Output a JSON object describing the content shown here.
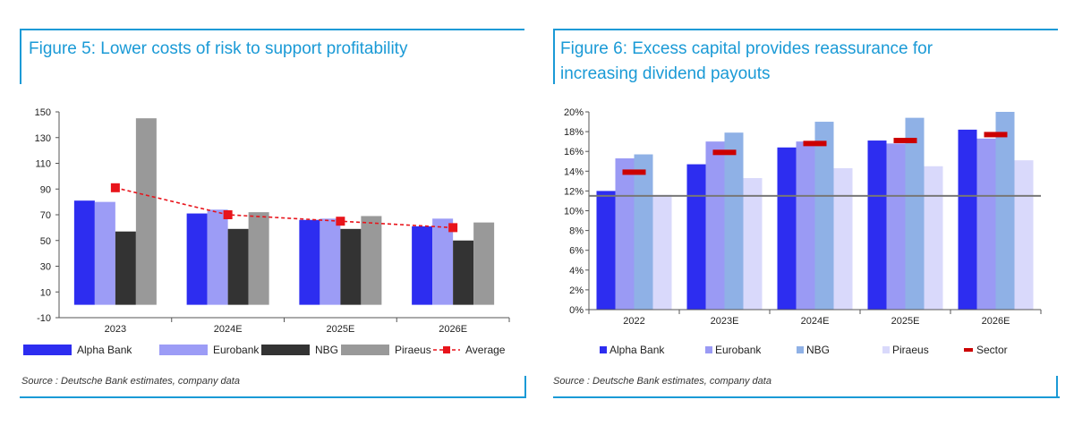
{
  "figure5": {
    "title": "Figure 5: Lower costs of risk to support profitability",
    "source": "Source : Deutsche Bank estimates, company data",
    "colors": {
      "Alpha Bank": "#2d2df0",
      "Eurobank": "#9c9cf6",
      "NBG": "#333333",
      "Piraeus": "#999999",
      "Average": "#e8141b",
      "axis": "#555555"
    }
  },
  "figure6": {
    "title_line1": "Figure 6: Excess capital provides reassurance for",
    "title_line2": "increasing dividend payouts",
    "source": "Source : Deutsche Bank estimates, company data",
    "colors": {
      "Alpha Bank": "#2d2df0",
      "Eurobank": "#9a9af4",
      "NBG": "#8fb1e6",
      "Piraeus": "#d9d9fb",
      "Sector": "#cc0000",
      "reference_line": "#777777"
    }
  },
  "chart_data": [
    {
      "type": "bar",
      "categories": [
        "2023",
        "2024E",
        "2025E",
        "2026E"
      ],
      "series": [
        {
          "name": "Alpha Bank",
          "values": [
            81,
            71,
            66,
            61
          ]
        },
        {
          "name": "Eurobank",
          "values": [
            80,
            74,
            67,
            67
          ]
        },
        {
          "name": "NBG",
          "values": [
            57,
            59,
            59,
            50
          ]
        },
        {
          "name": "Piraeus",
          "values": [
            145,
            72,
            69,
            64
          ]
        }
      ],
      "line_series": [
        {
          "name": "Average",
          "values": [
            91,
            70,
            65,
            60
          ],
          "style": "dashed-with-square-markers"
        }
      ],
      "yticks": [
        "150",
        "130",
        "110",
        "90",
        "70",
        "50",
        "30",
        "10",
        "-10"
      ],
      "ylim": [
        -10,
        150
      ],
      "grid": false,
      "legend_position": "bottom"
    },
    {
      "type": "bar",
      "categories": [
        "2022",
        "2023E",
        "2024E",
        "2025E",
        "2026E"
      ],
      "series": [
        {
          "name": "Alpha Bank",
          "values": [
            12.0,
            14.7,
            16.4,
            17.1,
            18.2
          ]
        },
        {
          "name": "Eurobank",
          "values": [
            15.3,
            17.0,
            17.0,
            16.8,
            17.3
          ]
        },
        {
          "name": "NBG",
          "values": [
            15.7,
            17.9,
            19.0,
            19.4,
            20.0
          ]
        },
        {
          "name": "Piraeus",
          "values": [
            11.6,
            13.3,
            14.3,
            14.5,
            15.1
          ]
        }
      ],
      "marker_series": [
        {
          "name": "Sector",
          "values": [
            13.9,
            15.9,
            16.8,
            17.1,
            17.7
          ],
          "style": "red-dash"
        }
      ],
      "reference_line": 11.5,
      "yticks": [
        "20%",
        "18%",
        "16%",
        "14%",
        "12%",
        "10%",
        "8%",
        "6%",
        "4%",
        "2%",
        "0%"
      ],
      "ylim": [
        0,
        20
      ],
      "grid": false,
      "legend_position": "bottom"
    }
  ]
}
